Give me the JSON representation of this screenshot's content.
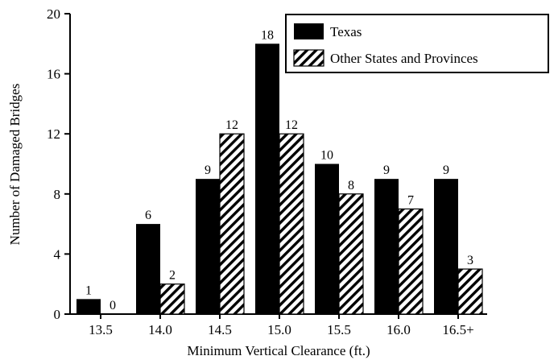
{
  "chart_data": {
    "type": "bar",
    "categories": [
      "13.5",
      "14.0",
      "14.5",
      "15.0",
      "15.5",
      "16.0",
      "16.5+"
    ],
    "series": [
      {
        "name": "Texas",
        "values": [
          1,
          6,
          9,
          18,
          10,
          9,
          9
        ],
        "fill": "solid"
      },
      {
        "name": "Other States and Provinces",
        "values": [
          0,
          2,
          12,
          12,
          8,
          7,
          3
        ],
        "fill": "hatched"
      }
    ],
    "data_labels": [
      [
        "1",
        "6",
        "9",
        "18",
        "10",
        "9",
        "9"
      ],
      [
        "0",
        "2",
        "12",
        "12",
        "8",
        "7",
        "3"
      ]
    ],
    "xlabel": "Minimum Vertical Clearance (ft.)",
    "ylabel": "Number of Damaged Bridges",
    "ylim": [
      0,
      20
    ],
    "yticks": [
      0,
      4,
      8,
      12,
      16,
      20
    ],
    "grid": false,
    "legend_position": "top-right",
    "colors": {
      "bar": "#000000",
      "background": "#ffffff"
    }
  }
}
